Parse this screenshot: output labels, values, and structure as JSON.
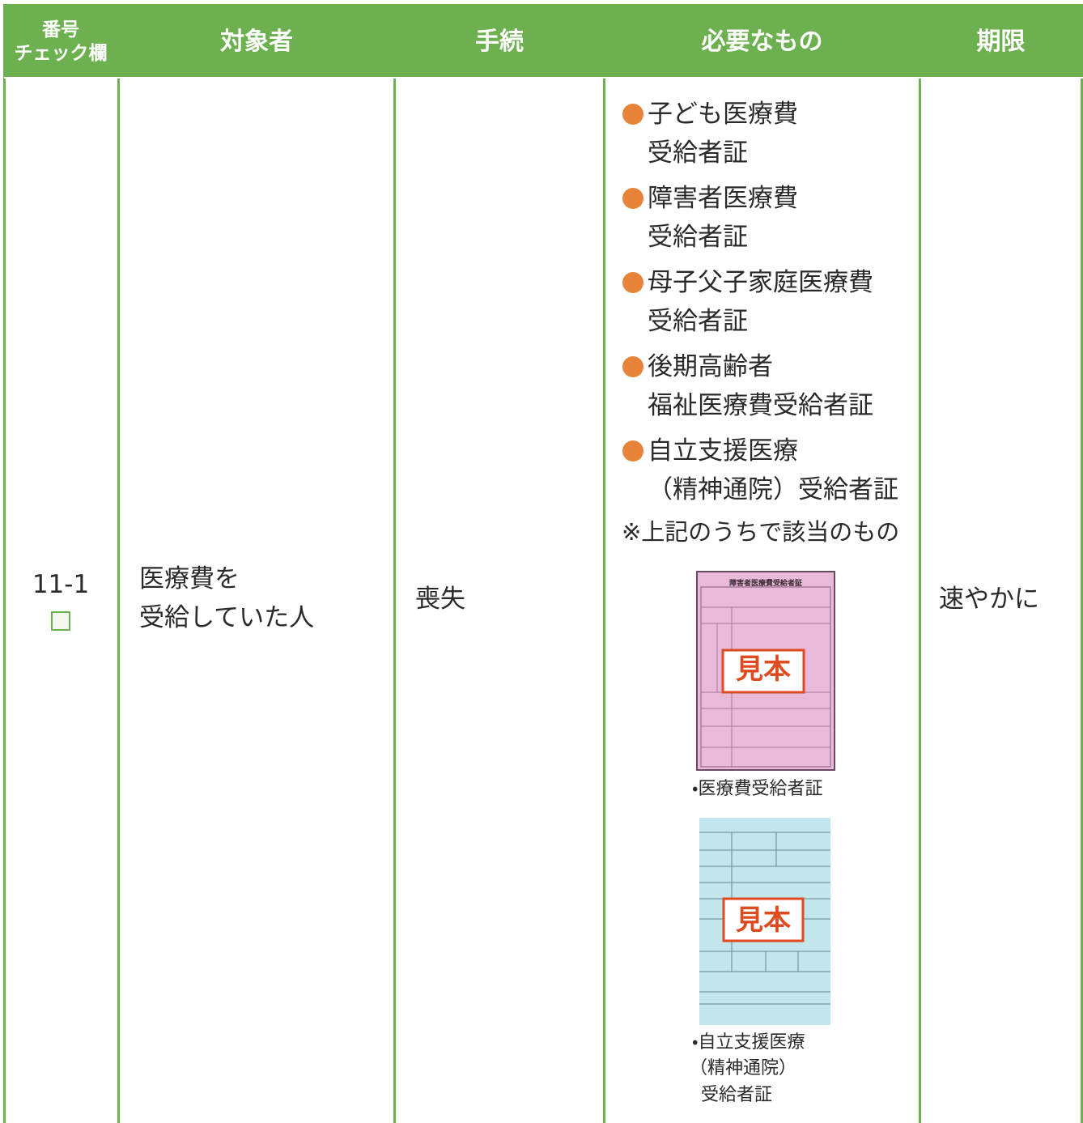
{
  "table": {
    "headers": [
      [
        "番号",
        "チェック欄"
      ],
      [
        "対象者"
      ],
      [
        "手続"
      ],
      [
        "必要なもの"
      ],
      [
        "期限"
      ]
    ],
    "rows": [
      {
        "number": "11-1",
        "target": [
          "医療費を",
          "受給していた人"
        ],
        "procedure": "喪失",
        "required": {
          "items": [
            [
              "子ども医療費",
              "受給者証"
            ],
            [
              "障害者医療費",
              "受給者証"
            ],
            [
              "母子父子家庭医療費",
              "受給者証"
            ],
            [
              "後期高齢者",
              "福祉医療費受給者証"
            ],
            [
              "自立支援医療",
              "（精神通院）受給者証"
            ]
          ],
          "note": "※上記のうちで該当のもの",
          "samples": [
            {
              "card_title": "障害者医療費受給者証",
              "stamp": "見本",
              "caption": [
                "・医療費受給者証"
              ]
            },
            {
              "stamp": "見本",
              "caption": [
                "・自立支援医療",
                "（精神通院）",
                "受給者証"
              ]
            }
          ]
        },
        "deadline": "速やかに"
      }
    ]
  }
}
